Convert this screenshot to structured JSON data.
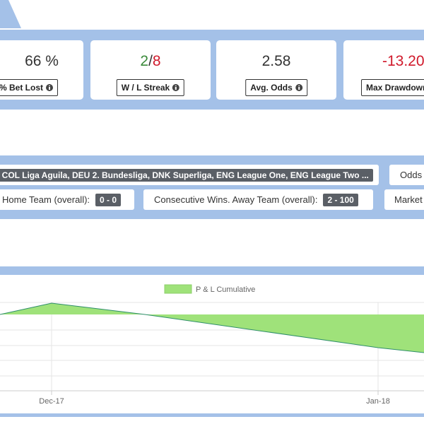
{
  "stats": [
    {
      "value": "66 %",
      "label": "% Bet Lost"
    },
    {
      "wins": "2",
      "separator": "/",
      "losses": "8",
      "label": "W / L Streak"
    },
    {
      "value": "2.58",
      "label": "Avg. Odds"
    },
    {
      "value": "-13.20",
      "label": "Max Drawdown"
    }
  ],
  "filters": {
    "leagues": ", COL Liga Aguila, DEU 2. Bundesliga, DNK Superliga, ENG League One, ENG League Two ...",
    "odds": "Odds",
    "home_label": "Home Team (overall):",
    "home_value": "0 - 0",
    "away_label": "Consecutive Wins. Away Team (overall):",
    "away_value": "2 - 100",
    "market": "Market"
  },
  "chart": {
    "legend": "P & L Cumulative",
    "x_labels": [
      "Dec-17",
      "Jan-18"
    ]
  }
}
